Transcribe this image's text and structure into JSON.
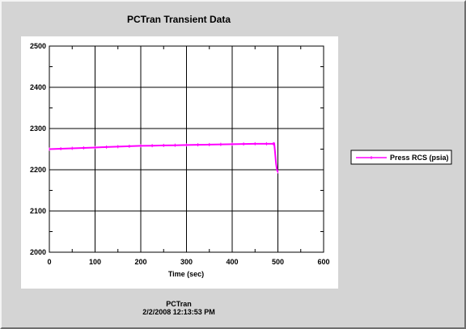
{
  "chart_data": {
    "type": "line",
    "title": "PCTran Transient Data",
    "xlabel": "Time (sec)",
    "ylabel": "",
    "xlim": [
      0,
      600
    ],
    "ylim": [
      2000,
      2500
    ],
    "xticks": [
      0,
      100,
      200,
      300,
      400,
      500,
      600
    ],
    "yticks": [
      2000,
      2100,
      2200,
      2300,
      2400,
      2500
    ],
    "grid": true,
    "legend_position": "right",
    "series": [
      {
        "name": "Press RCS (psia)",
        "color": "#ff00ff",
        "x": [
          0,
          25,
          50,
          75,
          100,
          125,
          150,
          175,
          200,
          225,
          250,
          275,
          300,
          325,
          350,
          375,
          400,
          425,
          450,
          475,
          490,
          492,
          494,
          496,
          498,
          500
        ],
        "y": [
          2250,
          2251,
          2252,
          2253,
          2254,
          2255,
          2256,
          2257,
          2258,
          2258.5,
          2259,
          2259.5,
          2260,
          2260.5,
          2261,
          2261.5,
          2262,
          2262.5,
          2263,
          2263,
          2263,
          2263,
          2240,
          2215,
          2200,
          2195
        ]
      }
    ]
  },
  "footer": {
    "app": "PCTran",
    "timestamp": "2/2/2008 12:13:53 PM"
  }
}
